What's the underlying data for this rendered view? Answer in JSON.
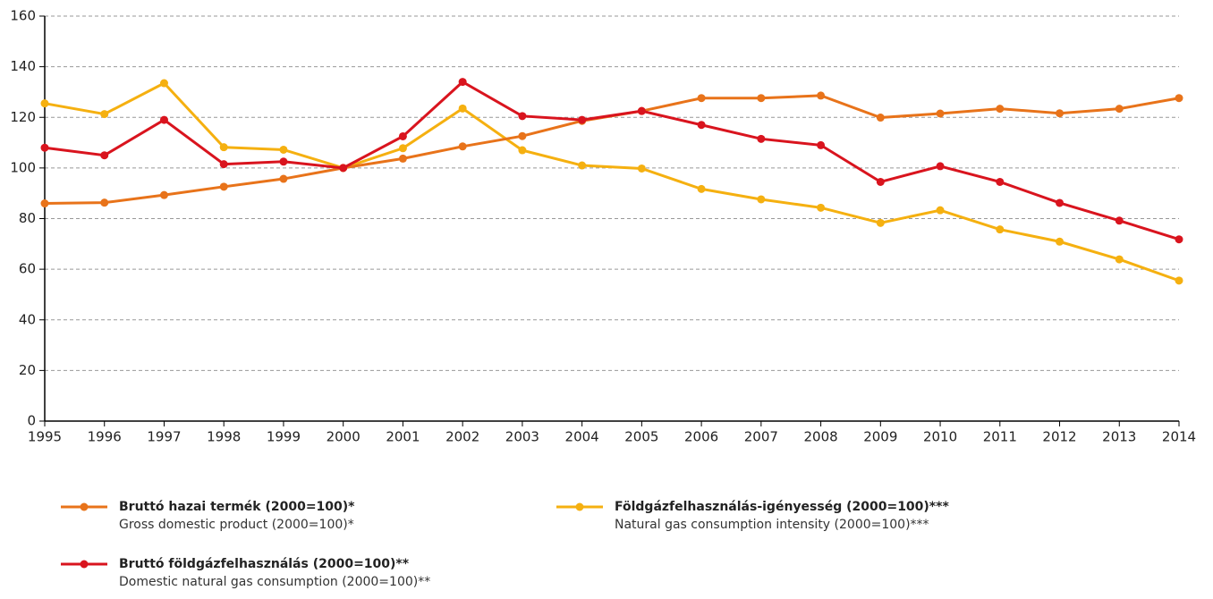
{
  "chart_data": {
    "type": "line",
    "categories": [
      "1995",
      "1996",
      "1997",
      "1998",
      "1999",
      "2000",
      "2001",
      "2002",
      "2003",
      "2004",
      "2005",
      "2006",
      "2007",
      "2008",
      "2009",
      "2010",
      "2011",
      "2012",
      "2013",
      "2014"
    ],
    "series": [
      {
        "name": "Földgázfelhasználás-igényesség (2000=100)***",
        "subtitle": "Natural gas consumption intensity (2000=100)***",
        "color": "#f5b010",
        "values": [
          125.5,
          121.3,
          133.5,
          108.2,
          107.2,
          100,
          107.8,
          123.5,
          107,
          101,
          99.8,
          91.7,
          87.6,
          84.3,
          78.3,
          83.3,
          75.7,
          70.9,
          63.9,
          55.5
        ]
      },
      {
        "name": "Bruttó hazai termék (2000=100)*",
        "subtitle": "Gross domestic product (2000=100)*",
        "color": "#e8731a",
        "values": [
          86,
          86.3,
          89.3,
          92.6,
          95.7,
          100,
          103.7,
          108.5,
          112.6,
          118.6,
          122.5,
          127.6,
          127.6,
          128.6,
          119.9,
          121.5,
          123.4,
          121.6,
          123.4,
          127.6
        ]
      },
      {
        "name": "Bruttó földgázfelhasználás (2000=100)**",
        "subtitle": "Domestic natural gas consumption (2000=100)**",
        "color": "#d9141e",
        "values": [
          108,
          105,
          119,
          101.5,
          102.5,
          100,
          112.5,
          134,
          120.5,
          119,
          122.5,
          117,
          111.5,
          109,
          94.5,
          100.7,
          94.5,
          86.2,
          79.2,
          71.8
        ]
      }
    ],
    "ylim": [
      0,
      160
    ],
    "yticks": [
      0,
      20,
      40,
      60,
      80,
      100,
      120,
      140,
      160
    ],
    "grid": true
  }
}
